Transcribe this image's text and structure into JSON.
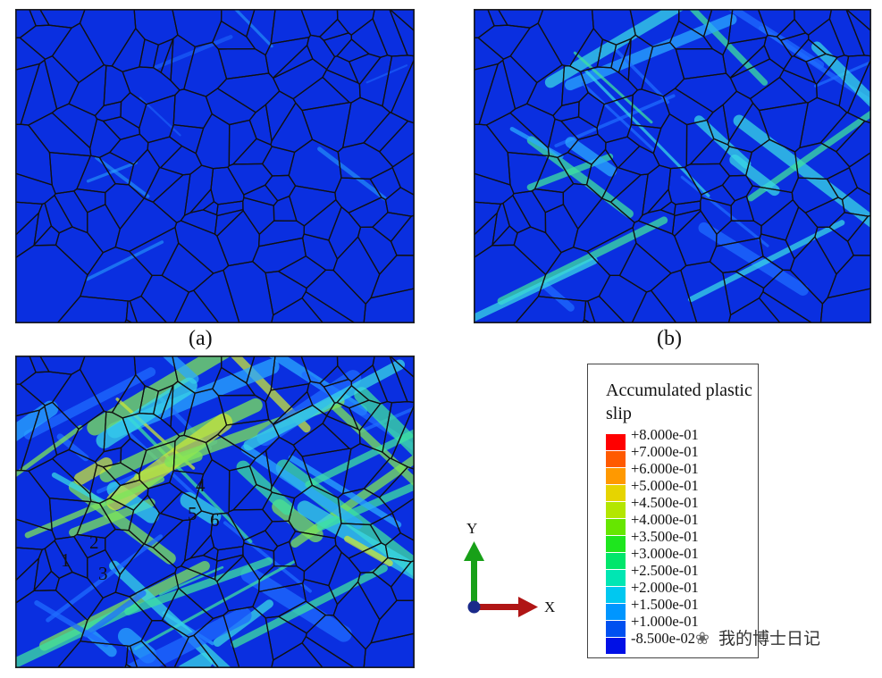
{
  "captions": {
    "a": "(a)",
    "b": "(b)"
  },
  "grain_labels": [
    "1",
    "2",
    "3",
    "4",
    "5",
    "6"
  ],
  "legend": {
    "title": "Accumulated plastic slip",
    "entries": [
      {
        "label": "+8.000e-01",
        "color": "#ff0000"
      },
      {
        "label": "+7.000e-01",
        "color": "#ff5a00"
      },
      {
        "label": "+6.000e-01",
        "color": "#ff9900"
      },
      {
        "label": "+5.000e-01",
        "color": "#e6d400"
      },
      {
        "label": "+4.500e-01",
        "color": "#b3e600"
      },
      {
        "label": "+4.000e-01",
        "color": "#66e600"
      },
      {
        "label": "+3.500e-01",
        "color": "#1ee61e"
      },
      {
        "label": "+3.000e-01",
        "color": "#00e66b"
      },
      {
        "label": "+2.500e-01",
        "color": "#00e6b3"
      },
      {
        "label": "+2.000e-01",
        "color": "#00c8f0"
      },
      {
        "label": "+1.500e-01",
        "color": "#0096ff"
      },
      {
        "label": "+1.000e-01",
        "color": "#0050f0"
      },
      {
        "label": "-8.500e-02",
        "color": "#0010e6"
      }
    ]
  },
  "axes": {
    "x": "X",
    "y": "Y"
  },
  "watermark": "我的博士日记",
  "colors": {
    "base": "#0a2fe0",
    "boundary": "#111111",
    "x_arrow": "#b01515",
    "y_arrow": "#18a018"
  }
}
